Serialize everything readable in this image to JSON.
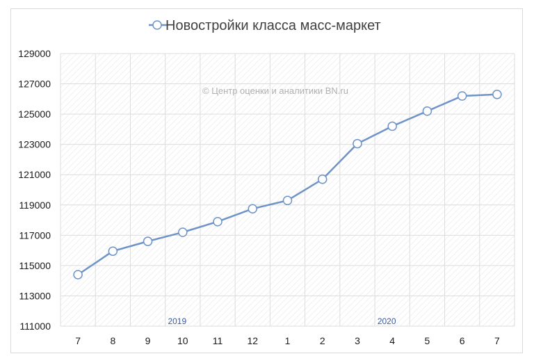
{
  "chart_data": {
    "type": "line",
    "title": "",
    "legend_position": "top",
    "watermark": "© Центр оценки и аналитики BN.ru",
    "series": [
      {
        "name": "Новостройки класса масс-маркет",
        "values": [
          114400,
          115950,
          116600,
          117200,
          117900,
          118750,
          119300,
          120700,
          123050,
          124200,
          125200,
          126200,
          126300
        ]
      }
    ],
    "categories": [
      "7",
      "8",
      "9",
      "10",
      "11",
      "12",
      "1",
      "2",
      "3",
      "4",
      "5",
      "6",
      "7"
    ],
    "year_labels": [
      {
        "text": "2019",
        "at_category": 3
      },
      {
        "text": "2020",
        "at_category": 9
      }
    ],
    "y_ticks": [
      "111000",
      "113000",
      "115000",
      "117000",
      "119000",
      "121000",
      "123000",
      "125000",
      "127000",
      "129000"
    ],
    "ylim": [
      111000,
      129000
    ],
    "grid": true,
    "colors": {
      "line": "#6e93c8",
      "marker_fill": "#ffffff",
      "grid": "#dcdcdc"
    }
  }
}
